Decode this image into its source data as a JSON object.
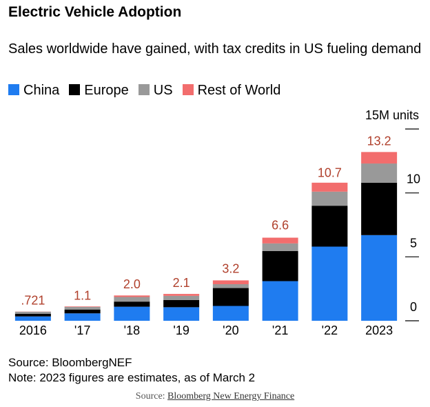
{
  "chart_data": {
    "type": "stacked-bar",
    "title": "Electric Vehicle Adoption",
    "subtitle": "Sales worldwide have gained, with tax credits in US fueling demand",
    "categories": [
      "2016",
      "'17",
      "'18",
      "'19",
      "'20",
      "'21",
      "'22",
      "2023"
    ],
    "series": [
      {
        "name": "China",
        "color": "#1f7cf0",
        "values": [
          0.34,
          0.58,
          1.1,
          1.06,
          1.16,
          3.1,
          5.8,
          6.7
        ]
      },
      {
        "name": "Europe",
        "color": "#000000",
        "values": [
          0.21,
          0.3,
          0.4,
          0.56,
          1.4,
          2.35,
          3.2,
          4.1
        ]
      },
      {
        "name": "US",
        "color": "#999999",
        "values": [
          0.16,
          0.2,
          0.36,
          0.33,
          0.3,
          0.6,
          1.1,
          1.5
        ]
      },
      {
        "name": "Rest of World",
        "color": "#f26d6d",
        "values": [
          0.011,
          0.04,
          0.12,
          0.15,
          0.3,
          0.45,
          0.7,
          0.9
        ]
      }
    ],
    "totals": [
      0.721,
      1.1,
      2.0,
      2.1,
      3.2,
      6.6,
      10.7,
      13.2
    ],
    "total_labels": [
      ".721",
      "1.1",
      "2.0",
      "2.1",
      "3.2",
      "6.6",
      "10.7",
      "13.2"
    ],
    "ylim": [
      0,
      15
    ],
    "yticks": [
      0,
      5,
      10,
      {
        "value": 15,
        "label": "15M units"
      }
    ],
    "source": "Source: BloombergNEF",
    "note": "Note: 2023 figures are estimates, as of March 2",
    "footer_label": "Source:",
    "footer_link": "Bloomberg New Energy Finance"
  }
}
